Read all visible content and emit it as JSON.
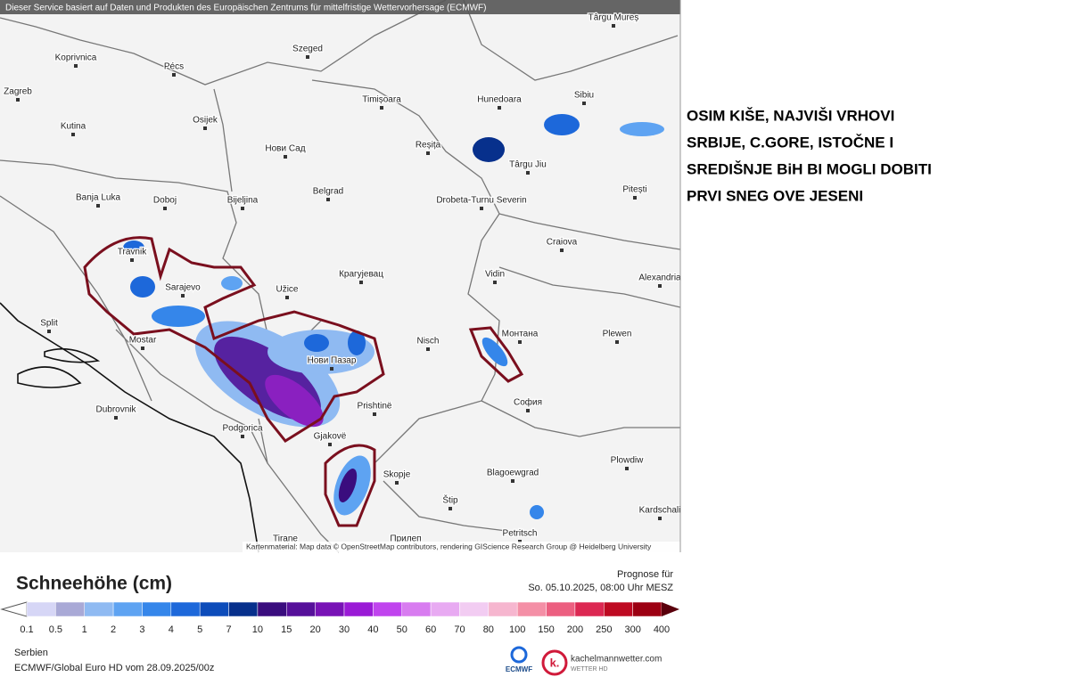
{
  "header": {
    "credit": "Dieser Service basiert auf Daten und Produkten des Europäischen Zentrums für mittelfristige Wettervorhersage (ECMWF)"
  },
  "map": {
    "cities": [
      "Koprivnica",
      "Pécs",
      "Szeged",
      "Târgu Mureș",
      "Zagreb",
      "Osijek",
      "Timișoara",
      "Hunedoara",
      "Sibiu",
      "Kutina",
      "Нови Сад",
      "Reșița",
      "Târgu Jiu",
      "Banja Luka",
      "Doboj",
      "Bijeljina",
      "Belgrad",
      "Drobeta-Turnu Severin",
      "Pitești",
      "Craiova",
      "Travnik",
      "Sarajevo",
      "Užice",
      "Крагујевац",
      "Vidin",
      "Alexandria",
      "Split",
      "Mostar",
      "Nisch",
      "Монтана",
      "Plewen",
      "Нови Пазар",
      "Dubrovnik",
      "Prishtinë",
      "София",
      "Podgorica",
      "Gjakovë",
      "Skopje",
      "Plowdiw",
      "Blagoewgrad",
      "Štip",
      "Kardschali",
      "Tirane",
      "Прилеп",
      "Petritsch"
    ],
    "attribution": "Kartenmaterial: Map data © OpenStreetMap contributors, rendering GIScience Research Group @ Heidelberg University"
  },
  "annotation": {
    "lines": [
      "OSIM KIŠE, NAJVIŠI VRHOVI",
      "SRBIJE, C.GORE, ISTOČNE I",
      "SREDIŠNJE BiH BI MOGLI DOBITI",
      "PRVI SNEG OVE JESENI"
    ]
  },
  "legend": {
    "title": "Schneehöhe (cm)",
    "forecast_label": "Prognose für",
    "forecast_time": "So. 05.10.2025, 08:00 Uhr MESZ",
    "ticks": [
      "0.1",
      "0.5",
      "1",
      "2",
      "3",
      "4",
      "5",
      "7",
      "10",
      "15",
      "20",
      "30",
      "40",
      "50",
      "60",
      "70",
      "80",
      "100",
      "150",
      "200",
      "250",
      "300",
      "400"
    ],
    "colors": [
      "#d6d6f6",
      "#a9a9d6",
      "#8fbaf2",
      "#5ea3f2",
      "#3586ea",
      "#1d68da",
      "#0d4cba",
      "#07308c",
      "#3a0d7e",
      "#56109a",
      "#7812b6",
      "#9a1ad6",
      "#c044ee",
      "#d87cf0",
      "#e8aaf2",
      "#f2ccf2",
      "#f6b6cf",
      "#f48fa6",
      "#ec5f80",
      "#dc2852",
      "#be0a22",
      "#9c0012"
    ]
  },
  "footer": {
    "region": "Serbien",
    "model": "ECMWF/Global Euro HD vom 28.09.2025/00z",
    "ecmwf_logo": "ECMWF",
    "brand": "kachelmannwetter.com",
    "brand_sub": "WETTER HD"
  }
}
